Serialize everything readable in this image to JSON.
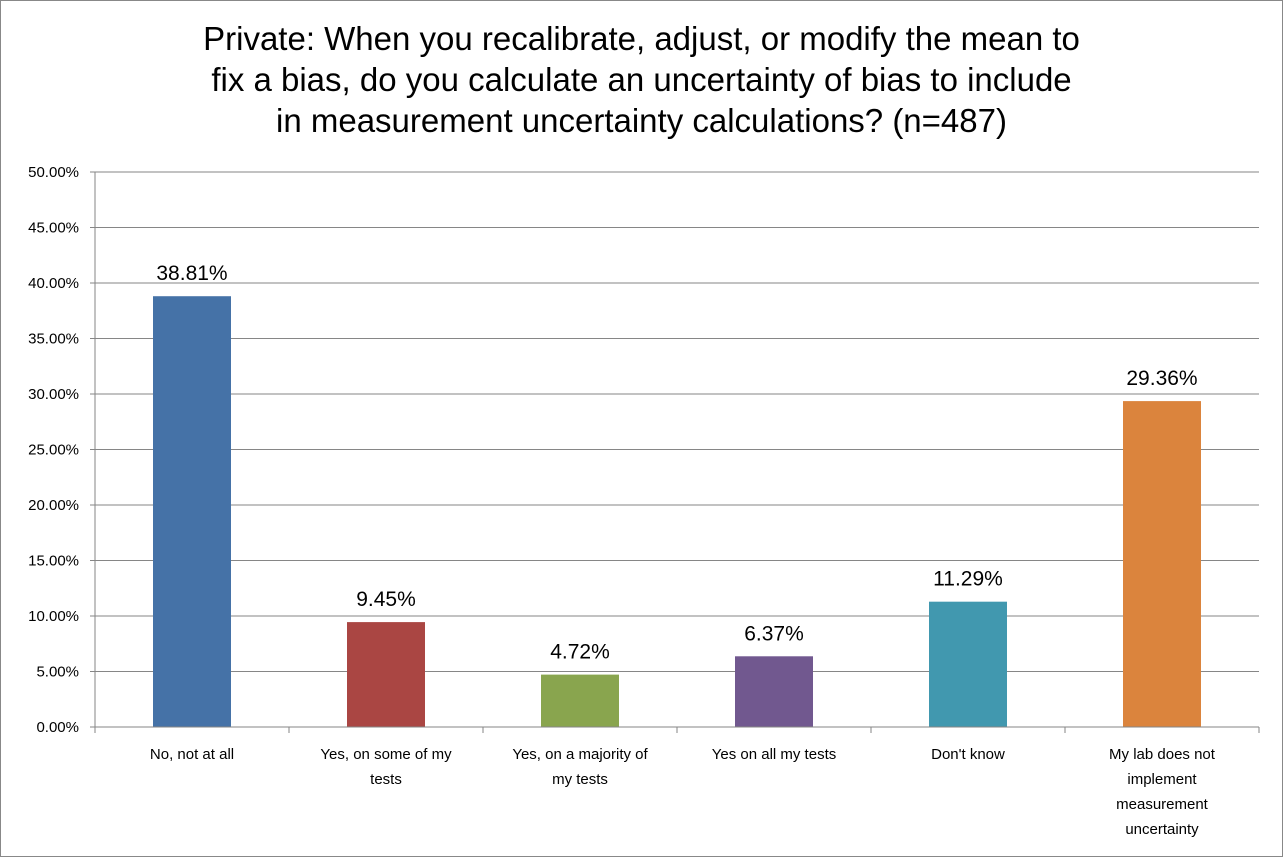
{
  "chart_data": {
    "type": "bar",
    "title_lines": [
      "Private: When you recalibrate, adjust, or modify the mean to",
      "fix a bias, do you calculate an uncertainty of bias to include",
      "in measurement uncertainty calculations? (n=487)"
    ],
    "categories": [
      [
        "No, not at all"
      ],
      [
        "Yes, on some of my",
        "tests"
      ],
      [
        "Yes, on a majority of",
        "my tests"
      ],
      [
        "Yes on all my tests"
      ],
      [
        "Don't know"
      ],
      [
        "My lab does not",
        "implement",
        "measurement",
        "uncertainty"
      ]
    ],
    "values": [
      38.81,
      9.45,
      4.72,
      6.37,
      11.29,
      29.36
    ],
    "data_labels": [
      "38.81%",
      "9.45%",
      "4.72%",
      "6.37%",
      "11.29%",
      "29.36%"
    ],
    "colors": [
      "#4572a7",
      "#aa4643",
      "#89a54e",
      "#71588f",
      "#4198af",
      "#db843d"
    ],
    "ylim": [
      0,
      50
    ],
    "yticks": [
      "0.00%",
      "5.00%",
      "10.00%",
      "15.00%",
      "20.00%",
      "25.00%",
      "30.00%",
      "35.00%",
      "40.00%",
      "45.00%",
      "50.00%"
    ],
    "grid": true,
    "legend": "none",
    "xlabel": "",
    "ylabel": ""
  }
}
